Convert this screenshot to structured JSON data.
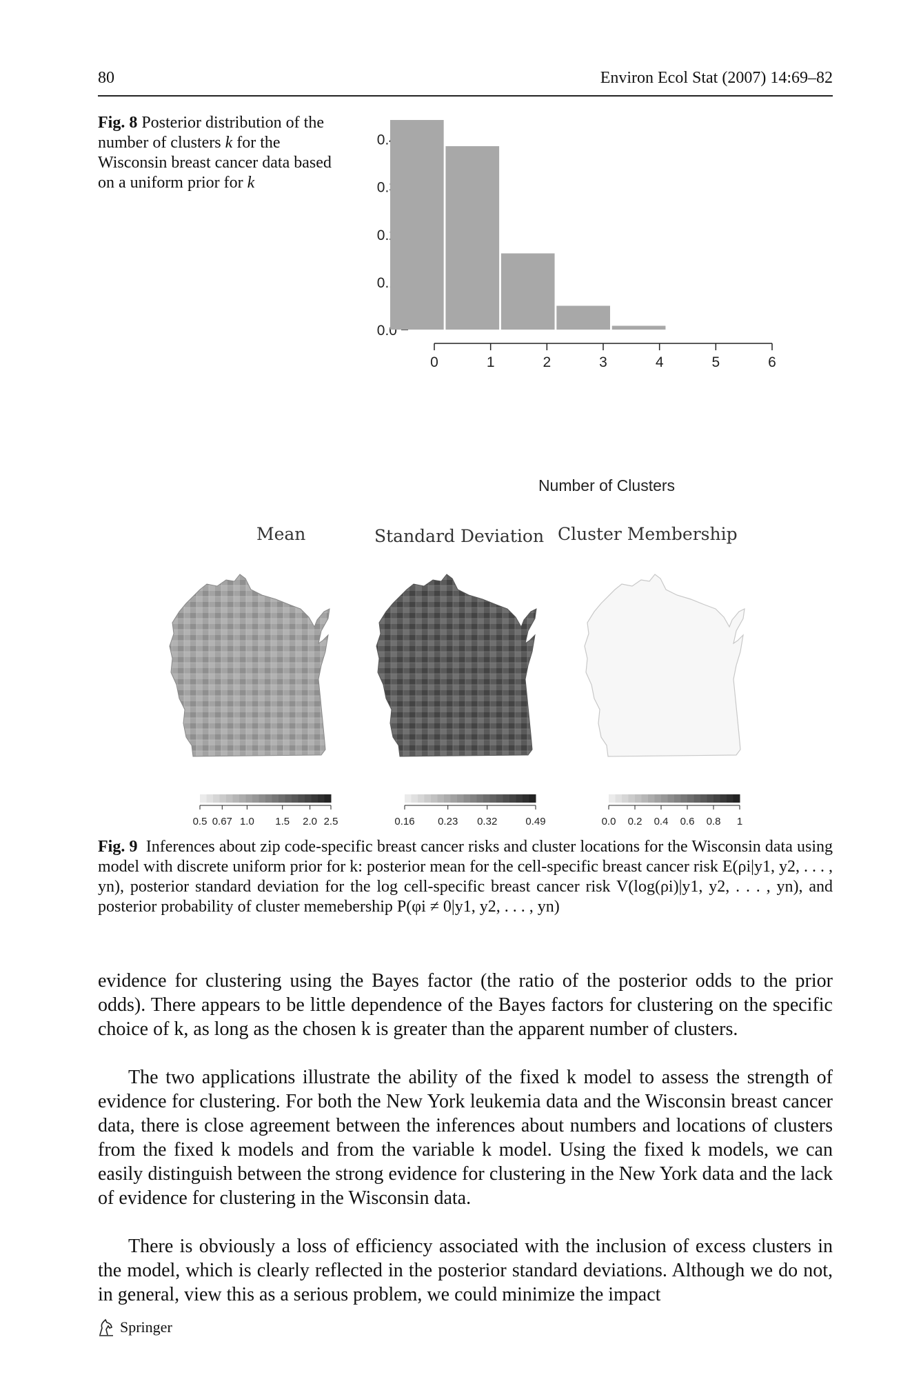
{
  "header": {
    "page_number": "80",
    "running_head": "Environ Ecol Stat (2007) 14:69–82"
  },
  "fig8": {
    "label": "Fig. 8",
    "caption_pre": "Posterior distribution of the number of clusters ",
    "caption_k1": "k",
    "caption_mid": " for the Wisconsin breast cancer data based on a uniform prior for ",
    "caption_k2": "k"
  },
  "chart_data": {
    "type": "bar",
    "categories": [
      "1",
      "2",
      "3",
      "4",
      "5"
    ],
    "values": [
      0.44,
      0.385,
      0.16,
      0.05,
      0.008
    ],
    "xlabel": "Number of Clusters",
    "ylabel": "",
    "xticks": [
      "0",
      "1",
      "2",
      "3",
      "4",
      "5",
      "6"
    ],
    "yticks": [
      "0.0",
      "0.1",
      "0.2",
      "0.3",
      "0.4"
    ],
    "ylim": [
      0,
      0.44
    ],
    "xlim": [
      0,
      6
    ],
    "bar_color": "#a8a8a8",
    "grid": false
  },
  "fig9": {
    "panel_titles": [
      "Mean",
      "Standard Deviation",
      "Cluster Membership"
    ],
    "legends": [
      {
        "ticks": [
          "0.5",
          "0.67",
          "1.0",
          "1.5",
          "2.0",
          "2.5"
        ]
      },
      {
        "ticks": [
          "0.16",
          "0.23",
          "0.32",
          "0.49"
        ]
      },
      {
        "ticks": [
          "0.0",
          "0.2",
          "0.4",
          "0.6",
          "0.8",
          "1"
        ]
      }
    ],
    "label": "Fig. 9",
    "caption": "Inferences about zip code-specific breast cancer risks and cluster locations for the Wisconsin data using model with discrete uniform prior for k: posterior mean for the cell-specific breast cancer risk E(ρi|y1, y2, . . . , yn), posterior standard deviation for the log cell-specific breast cancer risk V(log(ρi)|y1, y2, . . . , yn), and posterior probability of cluster memebership P(φi ≠ 0|y1, y2, . . . , yn)"
  },
  "body": {
    "para1": "evidence for clustering using the Bayes factor (the ratio of the posterior odds to the prior odds). There appears to be little dependence of the Bayes factors for clustering on the specific choice of k, as long as the chosen k is greater than the apparent number of clusters.",
    "para2": "The two applications illustrate the ability of the fixed k model to assess the strength of evidence for clustering. For both the New York leukemia data and the Wisconsin breast cancer data, there is close agreement between the inferences about numbers and locations of clusters from the fixed k models and from the variable k model. Using the fixed k models, we can easily distinguish between the strong evidence for clustering in the New York data and the lack of evidence for clustering in the Wisconsin data.",
    "para3": "There is obviously a loss of efficiency associated with the inclusion of excess clusters in the model, which is clearly reflected in the posterior standard deviations. Although we do not, in general, view this as a serious problem, we could minimize the impact"
  },
  "footer": {
    "publisher": "Springer",
    "publisher_icon": "springer-horse-icon"
  },
  "map_colors": {
    "mean": "#9a9a9a",
    "sd": "#5e5e5e",
    "cluster": "#f6f6f6"
  }
}
